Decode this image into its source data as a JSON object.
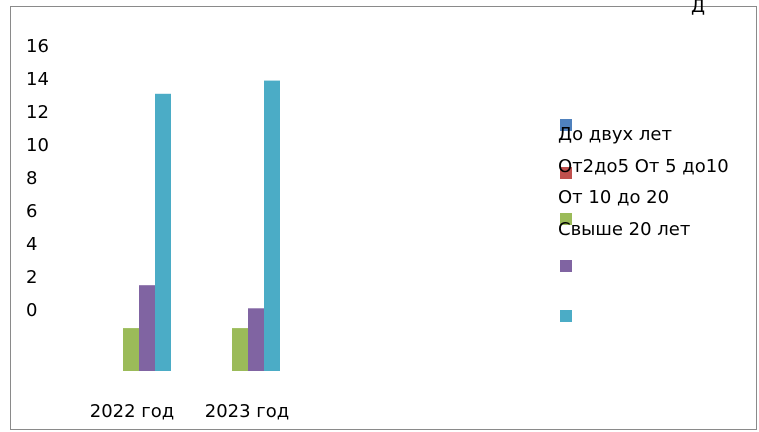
{
  "corner_text": "Д",
  "chart_data": {
    "type": "bar",
    "categories": [
      "2022 год",
      "2023 год"
    ],
    "y_tick_labels": [
      "16",
      "14",
      "12",
      "10",
      "8",
      "6",
      "4",
      "2",
      "0"
    ],
    "legend_text_lines": [
      "До двух лет",
      "От2до5 От 5 до10",
      "От 10 до 20",
      "Свыше 20 лет"
    ],
    "series": [
      {
        "name": "До двух лет",
        "color": "#4F81BD",
        "values": [
          0,
          0
        ]
      },
      {
        "name": "От2до5",
        "color": "#C0504D",
        "values": [
          0,
          0
        ]
      },
      {
        "name": "",
        "color": "#9BBB59",
        "values": [
          2.6,
          2.6
        ]
      },
      {
        "name": "",
        "color": "#8064A2",
        "values": [
          5.2,
          3.8
        ]
      },
      {
        "name": "",
        "color": "#4BACC6",
        "values": [
          16.8,
          17.6
        ]
      }
    ]
  }
}
